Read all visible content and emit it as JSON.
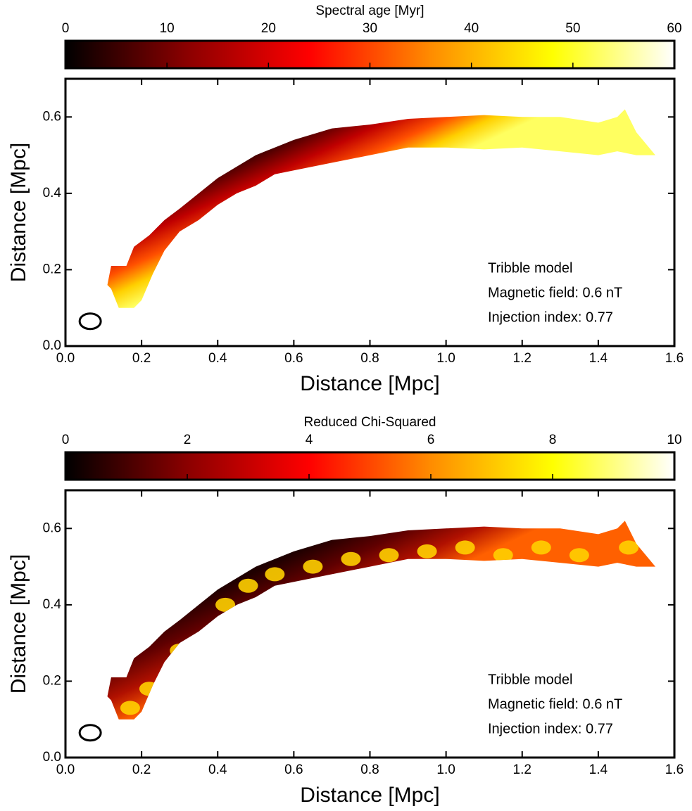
{
  "chart_data": [
    {
      "type": "heatmap",
      "title": "Spectral age [Myr]",
      "colormap": [
        "#000000",
        "#8b0000",
        "#ff0000",
        "#ff8c00",
        "#ffff00",
        "#ffffff"
      ],
      "clim": [
        0,
        60
      ],
      "cticks": [
        0,
        10,
        20,
        30,
        40,
        50,
        60
      ],
      "xlabel": "Distance [Mpc]",
      "ylabel": "Distance [Mpc]",
      "xlim": [
        0,
        1.6
      ],
      "xticks": [
        {
          "value": 0,
          "label": "0.0"
        },
        0.2,
        0.4,
        0.6,
        0.8,
        {
          "value": 1,
          "label": "1.0"
        },
        1.2,
        1.4,
        1.6
      ],
      "ylim": [
        0,
        0.7
      ],
      "yticks": [
        {
          "value": 0,
          "label": "0.0"
        },
        0.2,
        0.4,
        0.6
      ],
      "annotations": [
        "Tribble model",
        "Magnetic field: 0.6 nT",
        "Injection index: 0.77"
      ]
    },
    {
      "type": "heatmap",
      "title": "Reduced Chi-Squared",
      "colormap": [
        "#000000",
        "#8b0000",
        "#ff0000",
        "#ff8c00",
        "#ffff00",
        "#ffffff"
      ],
      "clim": [
        0,
        10
      ],
      "cticks": [
        0,
        2,
        4,
        6,
        8,
        10
      ],
      "xlabel": "Distance [Mpc]",
      "ylabel": "Distance [Mpc]",
      "xlim": [
        0,
        1.6
      ],
      "xticks": [
        {
          "value": 0,
          "label": "0.0"
        },
        0.2,
        0.4,
        0.6,
        0.8,
        {
          "value": 1,
          "label": "1.0"
        },
        1.2,
        1.4,
        1.6
      ],
      "ylim": [
        0,
        0.7
      ],
      "yticks": [
        {
          "value": 0,
          "label": "0.0"
        },
        0.2,
        0.4,
        0.6
      ],
      "annotations": [
        "Tribble model",
        "Magnetic field: 0.6 nT",
        "Injection index: 0.77"
      ]
    }
  ]
}
